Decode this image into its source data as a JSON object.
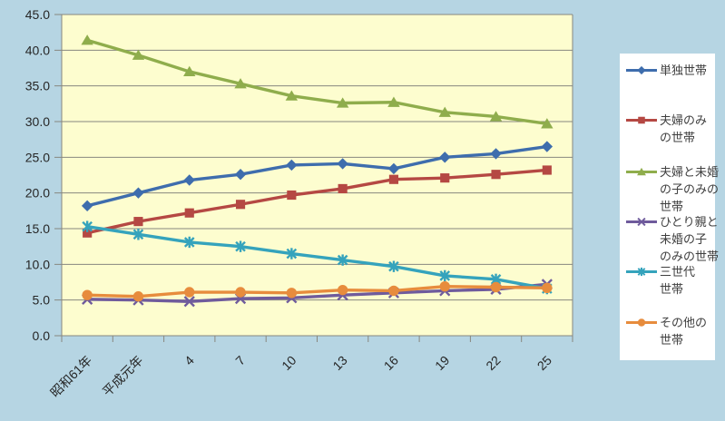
{
  "chart_data": {
    "type": "line",
    "title": "",
    "xlabel": "",
    "ylabel": "",
    "categories": [
      "昭和61年",
      "平成元年",
      "4",
      "7",
      "10",
      "13",
      "16",
      "19",
      "22",
      "25"
    ],
    "ylim": [
      0,
      45
    ],
    "ytick_step": 5,
    "ytick_decimals": 1,
    "grid": true,
    "legend_position": "right",
    "plot_bg": "#FDFDCF",
    "outer_bg": "#B6D5E3",
    "legend_bg": "#FFFFFF",
    "gridline_color": "#87877F",
    "axis_text_color": "#262626",
    "legend_text_color": "#3F3F3F",
    "series": [
      {
        "name": "単独世帯",
        "key": "single",
        "color": "#3E6DAD",
        "marker": "diamond",
        "legend_lines": [
          "単独世帯"
        ],
        "values": [
          18.2,
          20.0,
          21.8,
          22.6,
          23.9,
          24.1,
          23.4,
          25.0,
          25.5,
          26.5
        ]
      },
      {
        "name": "夫婦のみの世帯",
        "key": "couple-only",
        "color": "#B54843",
        "marker": "square",
        "legend_lines": [
          "夫婦のみ",
          "の世帯"
        ],
        "values": [
          14.4,
          16.0,
          17.2,
          18.4,
          19.7,
          20.6,
          21.9,
          22.1,
          22.6,
          23.2
        ]
      },
      {
        "name": "夫婦と未婚の子のみの世帯",
        "key": "couple-with-unmarried-children",
        "color": "#8FAD4C",
        "marker": "triangle",
        "legend_lines": [
          "夫婦と未婚",
          "の子のみの",
          "世帯"
        ],
        "values": [
          41.4,
          39.3,
          37.0,
          35.3,
          33.6,
          32.6,
          32.7,
          31.3,
          30.7,
          29.7
        ]
      },
      {
        "name": "ひとり親と未婚の子のみの世帯",
        "key": "single-parent-with-unmarried-children",
        "color": "#6F5B9C",
        "marker": "x",
        "legend_lines": [
          "ひとり親と",
          "未婚の子",
          "のみの世帯"
        ],
        "values": [
          5.1,
          5.0,
          4.8,
          5.2,
          5.3,
          5.7,
          6.0,
          6.3,
          6.5,
          7.2
        ]
      },
      {
        "name": "三世代世帯",
        "key": "three-generation",
        "color": "#35A3BC",
        "marker": "asterisk",
        "legend_lines": [
          "三世代",
          "世帯"
        ],
        "values": [
          15.3,
          14.2,
          13.1,
          12.5,
          11.5,
          10.6,
          9.7,
          8.4,
          7.9,
          6.6
        ]
      },
      {
        "name": "その他の世帯",
        "key": "other",
        "color": "#E78C3D",
        "marker": "circle",
        "legend_lines": [
          "その他の",
          "世帯"
        ],
        "values": [
          5.7,
          5.5,
          6.1,
          6.1,
          6.0,
          6.4,
          6.3,
          6.9,
          6.8,
          6.7
        ]
      }
    ]
  }
}
